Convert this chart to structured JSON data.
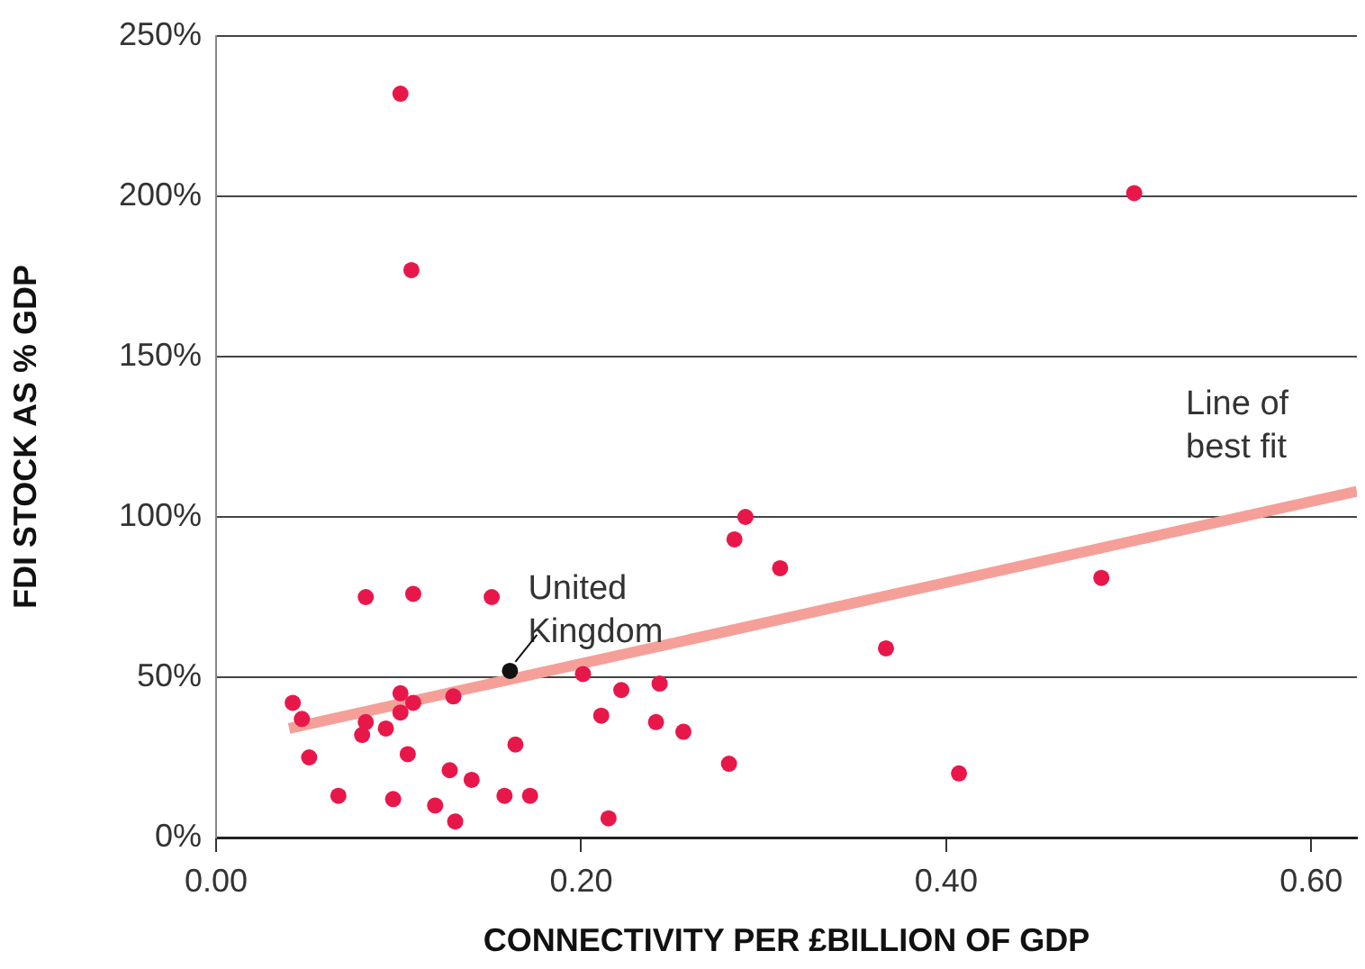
{
  "chart_data": {
    "type": "scatter",
    "xlabel": "CONNECTIVITY PER £BILLION OF GDP",
    "ylabel": "FDI STOCK AS % GDP",
    "xlim": [
      0,
      0.625
    ],
    "ylim": [
      0,
      250
    ],
    "xticks": [
      {
        "value": 0,
        "label": "0.00"
      },
      {
        "value": 0.2,
        "label": "0.20"
      },
      {
        "value": 0.4,
        "label": "0.40"
      },
      {
        "value": 0.6,
        "label": "0.60"
      }
    ],
    "yticks": [
      {
        "value": 0,
        "label": "0%"
      },
      {
        "value": 50,
        "label": "50%"
      },
      {
        "value": 100,
        "label": "100%"
      },
      {
        "value": 150,
        "label": "150%"
      },
      {
        "value": 200,
        "label": "200%"
      },
      {
        "value": 250,
        "label": "250%"
      }
    ],
    "grid": "y",
    "legend": false,
    "marker": "circle",
    "series": [
      {
        "color": "#e8174a",
        "x": [
          0.082,
          0.108,
          0.151,
          0.042,
          0.047,
          0.101,
          0.108,
          0.101,
          0.13,
          0.082,
          0.08,
          0.093,
          0.051,
          0.105,
          0.164,
          0.067,
          0.097,
          0.128,
          0.14,
          0.12,
          0.131,
          0.158,
          0.172,
          0.215,
          0.201,
          0.222,
          0.243,
          0.211,
          0.241,
          0.256,
          0.281,
          0.29,
          0.284,
          0.309,
          0.485,
          0.367,
          0.407,
          0.101,
          0.503,
          0.107
        ],
        "values": [
          75,
          76,
          75,
          42,
          37,
          45,
          42,
          39,
          44,
          36,
          32,
          34,
          25,
          26,
          29,
          13,
          12,
          21,
          18,
          10,
          5,
          13,
          13,
          6,
          51,
          46,
          48,
          38,
          36,
          33,
          23,
          100,
          93,
          84,
          81,
          59,
          20,
          232,
          201,
          177
        ]
      },
      {
        "name": "United Kingdom",
        "color": "#111111",
        "x": [
          0.161
        ],
        "values": [
          52
        ]
      },
      {
        "name": "Line of best fit",
        "type": "line",
        "color": "#f4a098",
        "marker": "none",
        "x": [
          0.04,
          0.625
        ],
        "values": [
          34,
          108
        ]
      }
    ]
  }
}
